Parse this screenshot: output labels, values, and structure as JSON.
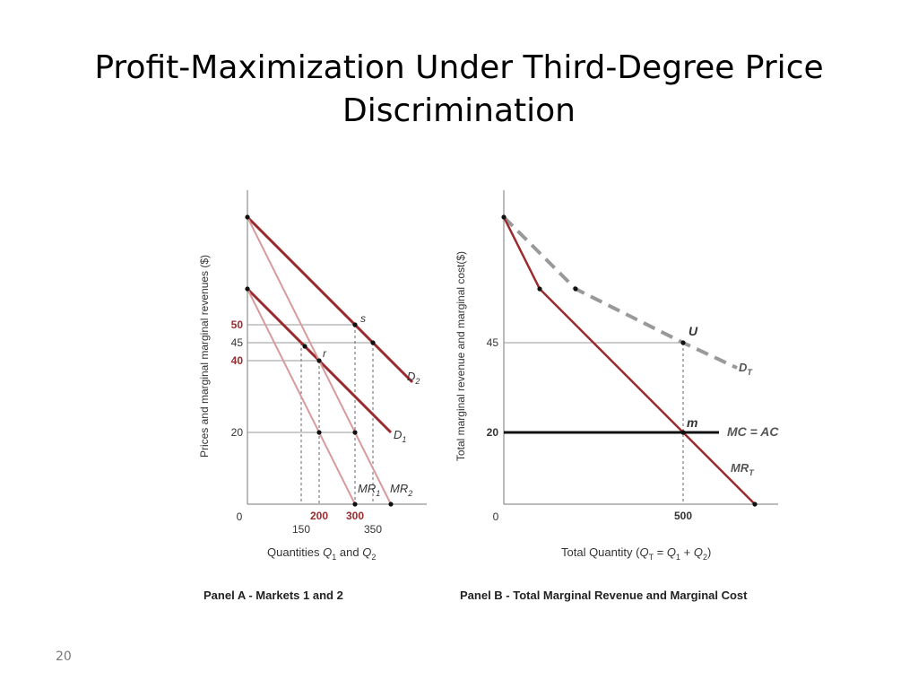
{
  "slide": {
    "title_lines": [
      "Profit-Maximization Under Third-Degree Price",
      "Discrimination"
    ],
    "page_number": "20"
  },
  "chart_data": [
    {
      "panel": "A",
      "type": "line",
      "caption": "Panel A - Markets 1 and 2",
      "xlabel_parts": [
        "Quantities ",
        "Q",
        "1",
        " and ",
        "Q",
        "2"
      ],
      "ylabel": "Prices and marginal marginal revenues ($)",
      "xlim": [
        0,
        510
      ],
      "ylim": [
        0,
        87.5
      ],
      "origin_label": "0",
      "x_ticks": [
        {
          "value": 150,
          "label": "150",
          "style": "normal"
        },
        {
          "value": 200,
          "label": "200",
          "style": "bold-red"
        },
        {
          "value": 300,
          "label": "300",
          "style": "bold-red"
        },
        {
          "value": 350,
          "label": "350",
          "style": "normal"
        }
      ],
      "y_ticks": [
        {
          "value": 50,
          "label": "50",
          "style": "bold-red"
        },
        {
          "value": 45,
          "label": "45",
          "style": "normal"
        },
        {
          "value": 40,
          "label": "40",
          "style": "bold-red"
        },
        {
          "value": 20,
          "label": "20",
          "style": "normal"
        }
      ],
      "series": [
        {
          "name": "D2",
          "label_main": "D",
          "label_sub": "2",
          "color": "#9b2a2e",
          "width": 3,
          "points": [
            [
              0,
              80
            ],
            [
              350,
              45
            ],
            [
              460,
              34
            ]
          ]
        },
        {
          "name": "D1",
          "label_main": "D",
          "label_sub": "1",
          "color": "#9b2a2e",
          "width": 3,
          "points": [
            [
              0,
              60
            ],
            [
              200,
              40
            ],
            [
              400,
              20
            ]
          ]
        },
        {
          "name": "MR1",
          "label_main": "MR",
          "label_sub": "1",
          "color": "#d79a9d",
          "width": 2,
          "points": [
            [
              0,
              60
            ],
            [
              300,
              0
            ]
          ]
        },
        {
          "name": "MR2",
          "label_main": "MR",
          "label_sub": "2",
          "color": "#d79a9d",
          "width": 2,
          "points": [
            [
              0,
              80
            ],
            [
              400,
              0
            ]
          ]
        }
      ],
      "reference_lines": [
        {
          "y": 50,
          "x_to": 300
        },
        {
          "y": 45,
          "x_to": 350
        },
        {
          "y": 40,
          "x_to": 200
        },
        {
          "y": 20,
          "x_to": 300
        }
      ],
      "drop_lines": [
        {
          "x": 150,
          "y_from": 45
        },
        {
          "x": 200,
          "y_from": 40
        },
        {
          "x": 300,
          "y_from": 50
        },
        {
          "x": 350,
          "y_from": 45
        }
      ],
      "points": [
        {
          "x": 0,
          "y": 80,
          "label": ""
        },
        {
          "x": 0,
          "y": 60,
          "label": ""
        },
        {
          "x": 300,
          "y": 50,
          "label": "s"
        },
        {
          "x": 350,
          "y": 45,
          "label": ""
        },
        {
          "x": 160,
          "y": 44,
          "label": ""
        },
        {
          "x": 200,
          "y": 40,
          "label": "r"
        },
        {
          "x": 200,
          "y": 20,
          "label": ""
        },
        {
          "x": 300,
          "y": 20,
          "label": ""
        },
        {
          "x": 300,
          "y": 0,
          "label": ""
        },
        {
          "x": 400,
          "y": 0,
          "label": ""
        }
      ]
    },
    {
      "panel": "B",
      "type": "line",
      "caption": "Panel B - Total Marginal Revenue and Marginal Cost",
      "xlabel_parts": [
        "Total Quantity (",
        "Q",
        "T",
        " = ",
        "Q",
        "1",
        " + ",
        "Q",
        "2",
        ")"
      ],
      "ylabel": "Total marginal revenue and marginal cost($)",
      "xlim": [
        0,
        790
      ],
      "ylim": [
        0,
        87.5
      ],
      "origin_label": "0",
      "x_ticks": [
        {
          "value": 500,
          "label": "500",
          "style": "bold"
        }
      ],
      "y_ticks": [
        {
          "value": 45,
          "label": "45",
          "style": "normal"
        },
        {
          "value": 20,
          "label": "20",
          "style": "bold"
        }
      ],
      "series": [
        {
          "name": "DT",
          "label_main": "D",
          "label_sub": "T",
          "color": "#999999",
          "width": 4,
          "dashed": true,
          "points": [
            [
              0,
              80
            ],
            [
              200,
              60
            ],
            [
              500,
              45
            ],
            [
              650,
              38
            ]
          ]
        },
        {
          "name": "MRT",
          "label_main": "MR",
          "label_sub": "T",
          "color": "#9b2a2e",
          "width": 2.5,
          "points": [
            [
              0,
              80
            ],
            [
              100,
              60
            ],
            [
              700,
              0
            ]
          ]
        },
        {
          "name": "MC = AC",
          "label_main": "MC = AC",
          "label_sub": "",
          "color": "#111111",
          "width": 3,
          "points": [
            [
              0,
              20
            ],
            [
              600,
              20
            ]
          ]
        }
      ],
      "reference_lines": [
        {
          "y": 45,
          "x_to": 500
        }
      ],
      "drop_lines": [
        {
          "x": 500,
          "y_from": 45
        }
      ],
      "points": [
        {
          "x": 0,
          "y": 80,
          "label": ""
        },
        {
          "x": 100,
          "y": 60,
          "label": ""
        },
        {
          "x": 200,
          "y": 60,
          "label": ""
        },
        {
          "x": 500,
          "y": 45,
          "label": "U"
        },
        {
          "x": 500,
          "y": 20,
          "label": "m"
        },
        {
          "x": 700,
          "y": 0,
          "label": ""
        }
      ]
    }
  ]
}
